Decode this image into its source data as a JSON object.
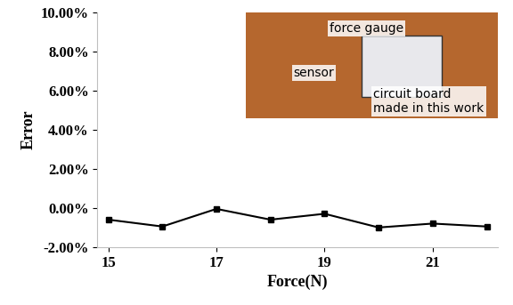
{
  "chart_data": {
    "type": "line",
    "x_label": "Force(N)",
    "y_label": "Error",
    "x": [
      15,
      16,
      17,
      18,
      19,
      20,
      21,
      22
    ],
    "values": [
      -0.6,
      -0.95,
      -0.05,
      -0.6,
      -0.3,
      -1.0,
      -0.8,
      -0.95
    ],
    "color": "#000000",
    "marker": "square",
    "line_style": "solid",
    "xlim": [
      14.8,
      22.2
    ],
    "xticks": [
      15,
      17,
      19,
      21
    ],
    "ylim": [
      -2,
      10
    ],
    "yticks": [
      {
        "value": -2,
        "label": "-2.00%"
      },
      {
        "value": 0,
        "label": "0.00%"
      },
      {
        "value": 2,
        "label": "2.00%"
      },
      {
        "value": 4,
        "label": "4.00%"
      },
      {
        "value": 6,
        "label": "6.00%"
      },
      {
        "value": 8,
        "label": "8.00%"
      },
      {
        "value": 10,
        "label": "10.00%"
      }
    ],
    "grid": false,
    "annotations": [
      "force gauge",
      "sensor",
      "circuit board\nmade in this work"
    ]
  }
}
